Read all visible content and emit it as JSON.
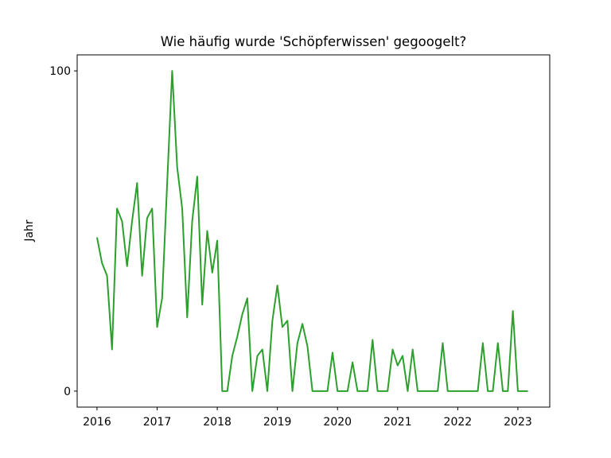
{
  "chart_data": {
    "type": "line",
    "title": "Wie häufig wurde 'Schöpferwissen' gegoogelt?",
    "y_label": "Jahr",
    "x": [
      2016,
      2016.083,
      2016.167,
      2016.25,
      2016.333,
      2016.417,
      2016.5,
      2016.583,
      2016.667,
      2016.75,
      2016.833,
      2016.917,
      2017,
      2017.083,
      2017.167,
      2017.25,
      2017.333,
      2017.417,
      2017.5,
      2017.583,
      2017.667,
      2017.75,
      2017.833,
      2017.917,
      2018,
      2018.083,
      2018.167,
      2018.25,
      2018.333,
      2018.417,
      2018.5,
      2018.583,
      2018.667,
      2018.75,
      2018.833,
      2018.917,
      2019,
      2019.083,
      2019.167,
      2019.25,
      2019.333,
      2019.417,
      2019.5,
      2019.583,
      2019.667,
      2019.75,
      2019.833,
      2019.917,
      2020,
      2020.083,
      2020.167,
      2020.25,
      2020.333,
      2020.417,
      2020.5,
      2020.583,
      2020.667,
      2020.75,
      2020.833,
      2020.917,
      2021,
      2021.083,
      2021.167,
      2021.25,
      2021.333,
      2021.417,
      2021.5,
      2021.583,
      2021.667,
      2021.75,
      2021.833,
      2021.917,
      2022,
      2022.083,
      2022.167,
      2022.25,
      2022.333,
      2022.417,
      2022.5,
      2022.583,
      2022.667,
      2022.75,
      2022.833,
      2022.917,
      2023,
      2023.083,
      2023.167
    ],
    "series": [
      {
        "color": "#2ca02c",
        "values": [
          48,
          40,
          36,
          13,
          57,
          53,
          39,
          53,
          65,
          36,
          54,
          57,
          20,
          29,
          65,
          100,
          70,
          57,
          23,
          53,
          67,
          27,
          50,
          37,
          47,
          0,
          0,
          11,
          17,
          24,
          29,
          0,
          11,
          13,
          0,
          22,
          33,
          20,
          22,
          0,
          15,
          21,
          14,
          0,
          0,
          0,
          0,
          12,
          0,
          0,
          0,
          9,
          0,
          0,
          0,
          16,
          0,
          0,
          0,
          13,
          8,
          11,
          0,
          13,
          0,
          0,
          0,
          0,
          0,
          15,
          0,
          0,
          0,
          0,
          0,
          0,
          0,
          15,
          0,
          0,
          15,
          0,
          0,
          25,
          0,
          0,
          0
        ]
      }
    ],
    "xlim": [
      2015.67,
      2023.53
    ],
    "ylim": [
      -5,
      105
    ],
    "xticks": [
      2016,
      2017,
      2018,
      2019,
      2020,
      2021,
      2022,
      2023
    ],
    "yticks": [
      0,
      100
    ]
  }
}
